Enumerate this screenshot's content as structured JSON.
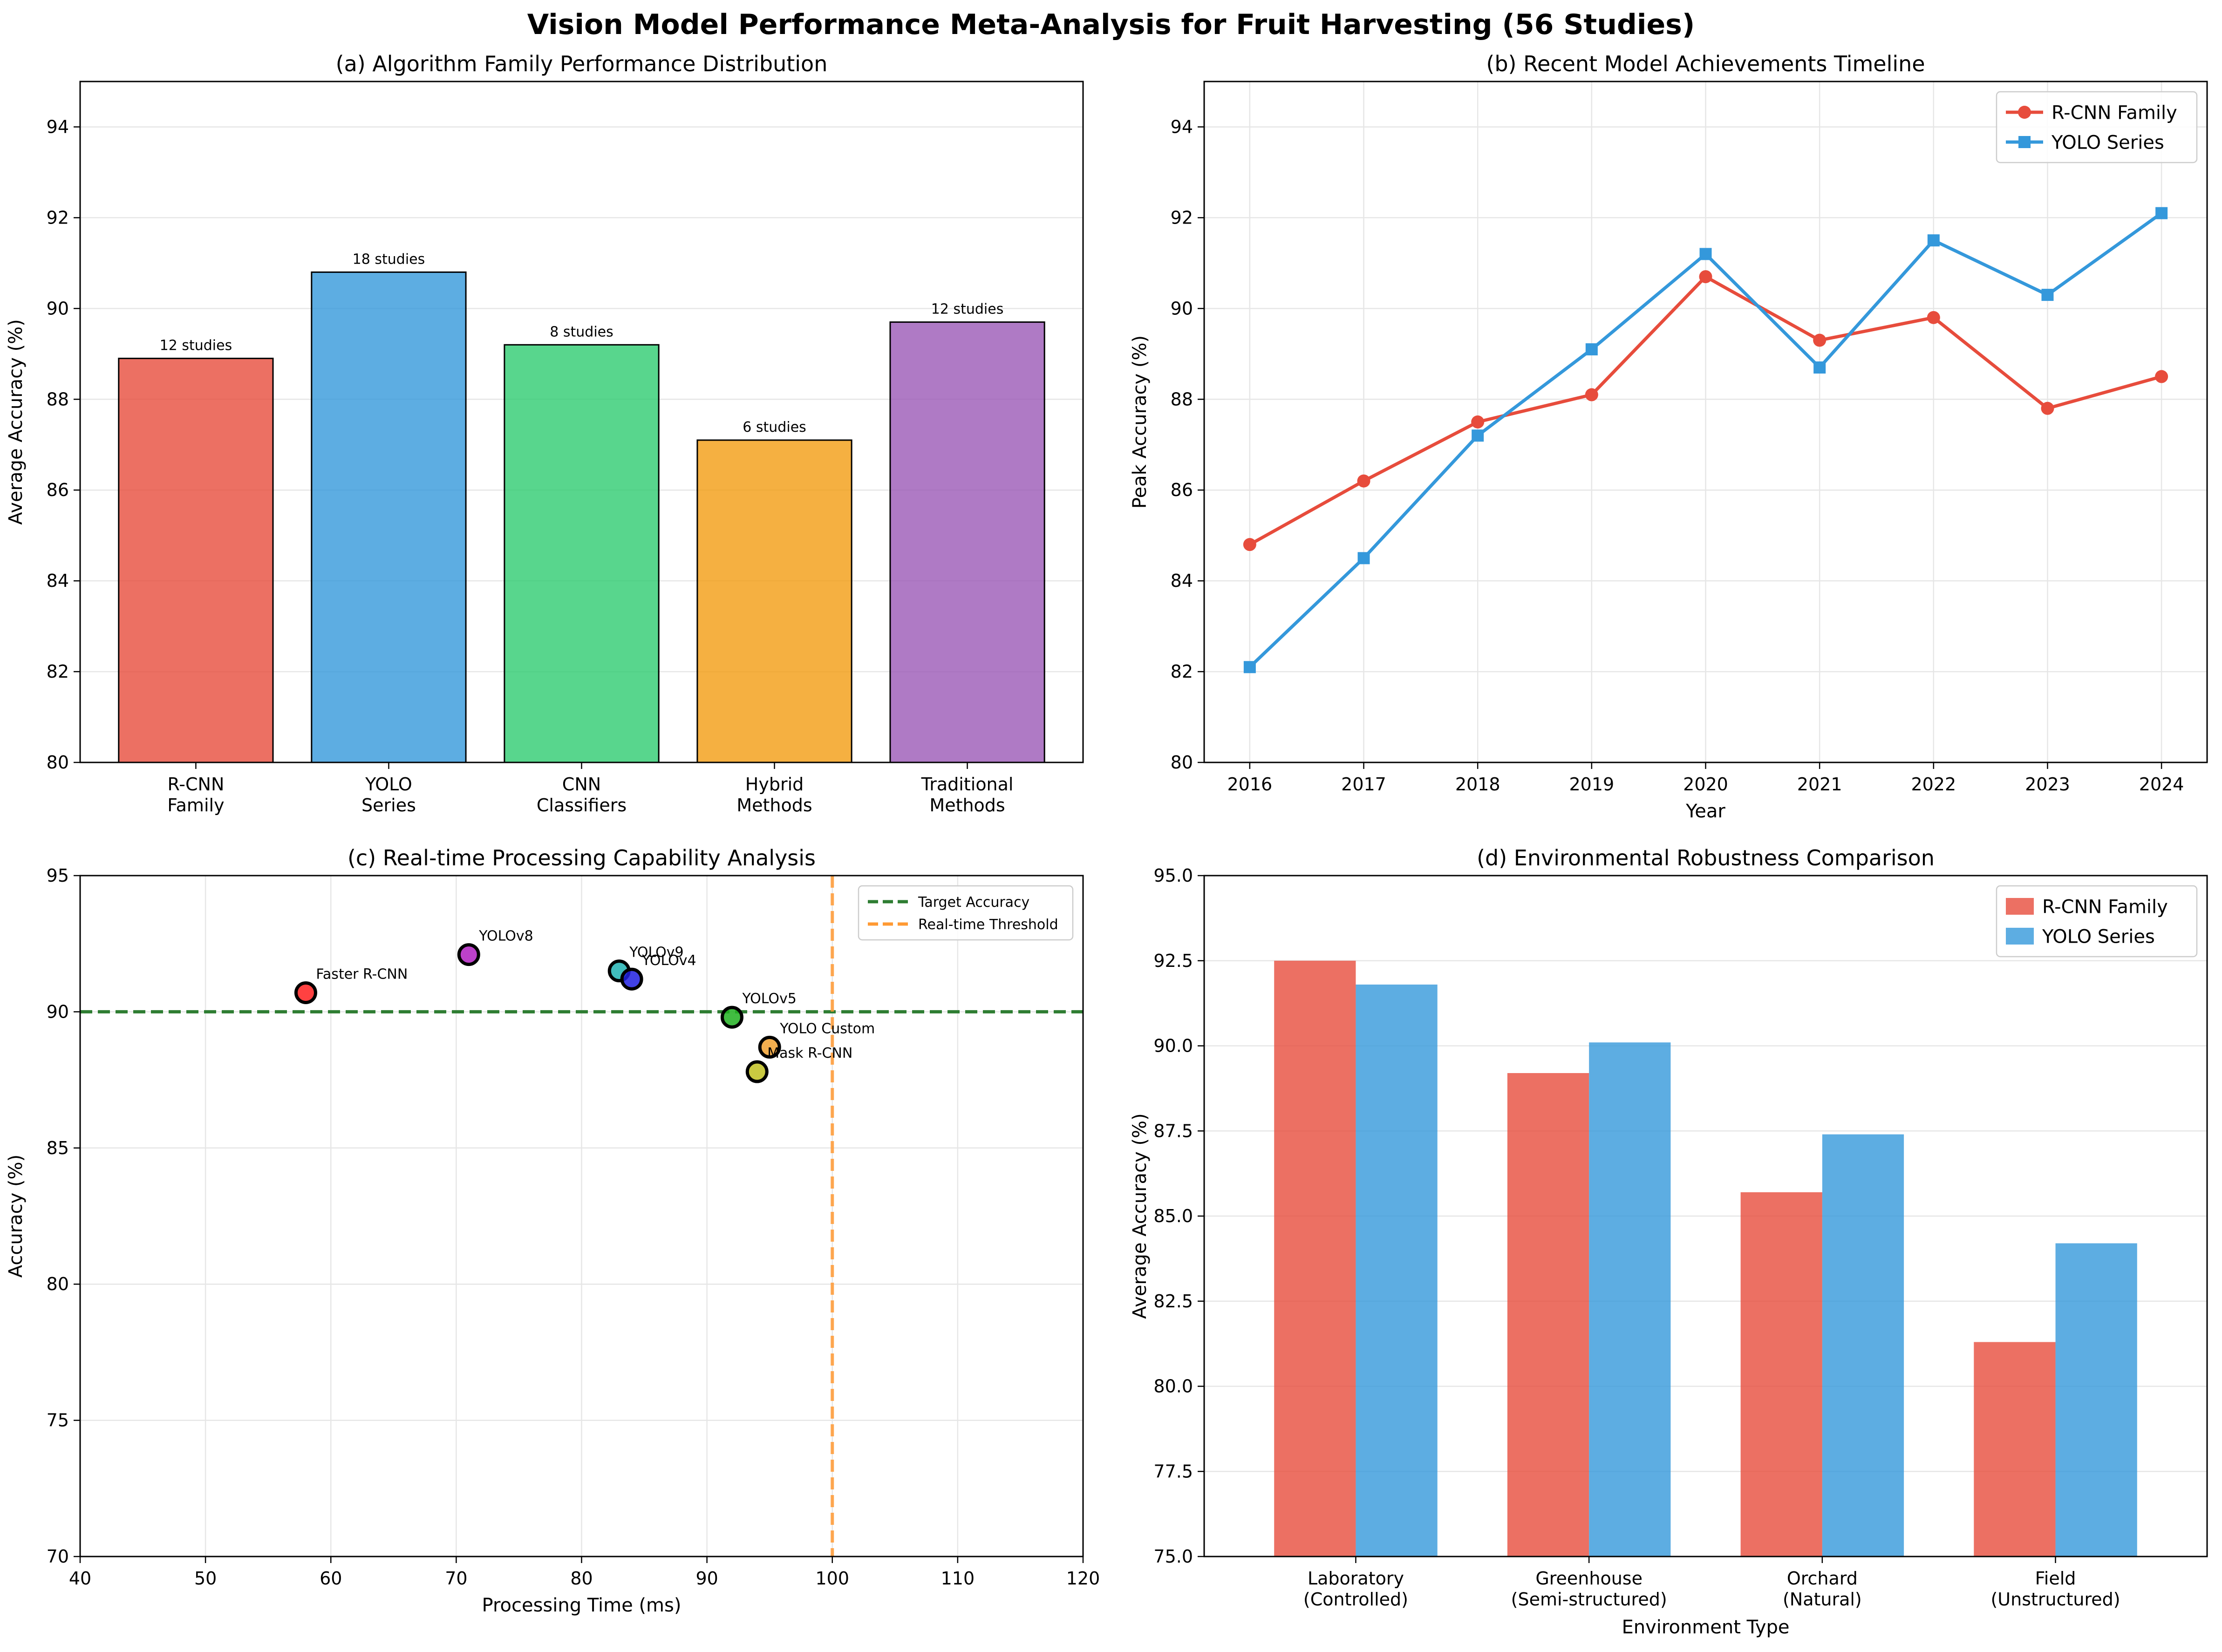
{
  "figure": {
    "title": "Vision Model Performance Meta-Analysis for Fruit Harvesting (56 Studies)"
  },
  "chart_data": [
    {
      "type": "bar",
      "title": "(a) Algorithm Family Performance Distribution",
      "xlabel": "",
      "ylabel": "Average Accuracy (%)",
      "ylim": [
        80,
        95
      ],
      "yticks": [
        80,
        82,
        84,
        86,
        88,
        90,
        92,
        94
      ],
      "categories": [
        "R-CNN\nFamily",
        "YOLO\nSeries",
        "CNN\nClassifiers",
        "Hybrid\nMethods",
        "Traditional\nMethods"
      ],
      "values": [
        88.9,
        90.8,
        89.2,
        87.1,
        89.7
      ],
      "bar_labels": [
        "12 studies",
        "18 studies",
        "8 studies",
        "6 studies",
        "12 studies"
      ],
      "colors": [
        "#e74c3c",
        "#3498db",
        "#2ecc71",
        "#f39c12",
        "#9b59b6"
      ],
      "grid": true
    },
    {
      "type": "line",
      "title": "(b) Recent Model Achievements Timeline",
      "xlabel": "Year",
      "ylabel": "Peak Accuracy (%)",
      "ylim": [
        80,
        95
      ],
      "yticks": [
        80,
        82,
        84,
        86,
        88,
        90,
        92,
        94
      ],
      "x": [
        2016,
        2017,
        2018,
        2019,
        2020,
        2021,
        2022,
        2023,
        2024
      ],
      "series": [
        {
          "name": "R-CNN Family",
          "color": "#e74c3c",
          "marker": "circle",
          "values": [
            84.8,
            86.2,
            87.5,
            88.1,
            90.7,
            89.3,
            89.8,
            87.8,
            88.5
          ]
        },
        {
          "name": "YOLO Series",
          "color": "#3498db",
          "marker": "square",
          "values": [
            82.1,
            84.5,
            87.2,
            89.1,
            91.2,
            88.7,
            91.5,
            90.3,
            92.1
          ]
        }
      ],
      "legend": "top-right",
      "grid": true
    },
    {
      "type": "scatter",
      "title": "(c) Real-time Processing Capability Analysis",
      "xlabel": "Processing Time (ms)",
      "ylabel": "Accuracy (%)",
      "xlim": [
        40,
        120
      ],
      "ylim": [
        70,
        95
      ],
      "xticks": [
        40,
        50,
        60,
        70,
        80,
        90,
        100,
        110,
        120
      ],
      "yticks": [
        70,
        75,
        80,
        85,
        90,
        95
      ],
      "points": [
        {
          "label": "Faster R-CNN",
          "x": 58,
          "y": 90.7,
          "color": "#ff2020"
        },
        {
          "label": "YOLOv8",
          "x": 71,
          "y": 92.1,
          "color": "#b020c0"
        },
        {
          "label": "YOLOv9",
          "x": 83,
          "y": 91.5,
          "color": "#20b0b0"
        },
        {
          "label": "YOLOv4",
          "x": 84,
          "y": 91.2,
          "color": "#2020e0"
        },
        {
          "label": "YOLOv5",
          "x": 92,
          "y": 89.8,
          "color": "#20b020"
        },
        {
          "label": "YOLO Custom",
          "x": 95,
          "y": 88.7,
          "color": "#f0a030"
        },
        {
          "label": "Mask R-CNN",
          "x": 94,
          "y": 87.8,
          "color": "#c0c020"
        }
      ],
      "reference_lines": [
        {
          "name": "Target Accuracy",
          "axis": "y",
          "value": 90,
          "color": "#2e7d32"
        },
        {
          "name": "Real-time Threshold",
          "axis": "x",
          "value": 100,
          "color": "#ff9933"
        }
      ],
      "legend": "top-right",
      "grid": true
    },
    {
      "type": "bar",
      "title": "(d) Environmental Robustness Comparison",
      "xlabel": "Environment Type",
      "ylabel": "Average Accuracy (%)",
      "ylim": [
        75,
        95
      ],
      "yticks": [
        75.0,
        77.5,
        80.0,
        82.5,
        85.0,
        87.5,
        90.0,
        92.5,
        95.0
      ],
      "categories": [
        "Laboratory\n(Controlled)",
        "Greenhouse\n(Semi-structured)",
        "Orchard\n(Natural)",
        "Field\n(Unstructured)"
      ],
      "series": [
        {
          "name": "R-CNN Family",
          "color": "#e74c3c",
          "values": [
            92.5,
            89.2,
            85.7,
            81.3
          ]
        },
        {
          "name": "YOLO Series",
          "color": "#3498db",
          "values": [
            91.8,
            90.1,
            87.4,
            84.2
          ]
        }
      ],
      "legend": "top-right",
      "grid": true
    }
  ]
}
